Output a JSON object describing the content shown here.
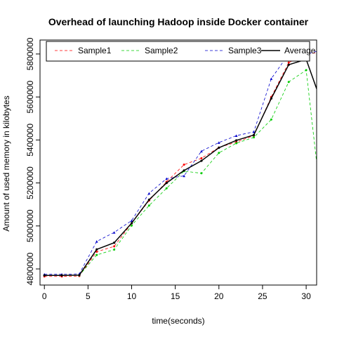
{
  "chart_data": {
    "type": "line",
    "title": "Overhead of launching Hadoop inside Docker container",
    "xlabel": "time(seconds)",
    "ylabel": "Amount of used memory in kilobytes",
    "xlim": [
      -0.5,
      31.2
    ],
    "ylim": [
      4725000,
      5865000
    ],
    "x_ticks": [
      0,
      5,
      10,
      15,
      20,
      25,
      30
    ],
    "y_ticks": [
      4800000,
      5000000,
      5200000,
      5400000,
      5600000,
      5800000
    ],
    "legend_position": "top",
    "grid": false,
    "x": [
      0,
      2,
      4,
      6,
      8,
      10,
      12,
      14,
      16,
      18,
      20,
      22,
      24,
      26,
      28,
      30,
      32
    ],
    "series": [
      {
        "name": "Sample1",
        "color": "#ff0000",
        "style": "dashed",
        "marker": "circle",
        "values": [
          4765000,
          4765000,
          4767000,
          4880000,
          4905000,
          5012000,
          5118000,
          5205000,
          5285000,
          5315000,
          5365000,
          5390000,
          5420000,
          5600000,
          5760000,
          5800000,
          5810000
        ]
      },
      {
        "name": "Sample2",
        "color": "#00cc00",
        "style": "dashed",
        "marker": "circle",
        "values": [
          4770000,
          4770000,
          4770000,
          4865000,
          4890000,
          5002000,
          5095000,
          5175000,
          5255000,
          5245000,
          5340000,
          5385000,
          5412000,
          5495000,
          5670000,
          5725000,
          5010000
        ]
      },
      {
        "name": "Sample3",
        "color": "#0000cc",
        "style": "dashed",
        "marker": "triangle",
        "values": [
          4775000,
          4775000,
          4777000,
          4928000,
          4970000,
          5025000,
          5152000,
          5220000,
          5233000,
          5348000,
          5388000,
          5420000,
          5438000,
          5685000,
          5800000,
          5800000,
          5820000
        ]
      },
      {
        "name": "Average",
        "color": "#000000",
        "style": "solid",
        "marker": "circle",
        "values": [
          4770000,
          4770000,
          4771000,
          4891000,
          4922000,
          5013000,
          5122000,
          5200000,
          5258000,
          5303000,
          5364000,
          5398000,
          5423000,
          5593000,
          5750000,
          5775000,
          5547000
        ]
      }
    ]
  }
}
